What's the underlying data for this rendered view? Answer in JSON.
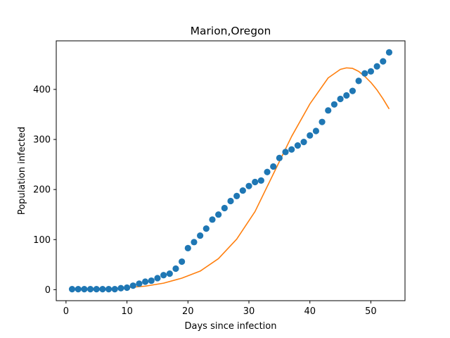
{
  "chart_data": {
    "type": "scatter",
    "title": "Marion,Oregon",
    "xlabel": "Days since infection",
    "ylabel": "Population infected",
    "xlim": [
      -1.6,
      55.6
    ],
    "ylim": [
      -22,
      497
    ],
    "xticks": [
      0,
      10,
      20,
      30,
      40,
      50
    ],
    "yticks": [
      0,
      100,
      200,
      300,
      400
    ],
    "grid": false,
    "legend": "none",
    "colors": {
      "observed": "#1f77b4",
      "model": "#ff7f0e"
    },
    "series": [
      {
        "kind": "scatter",
        "x": [
          1,
          2,
          3,
          4,
          5,
          6,
          7,
          8,
          9,
          10,
          11,
          12,
          13,
          14,
          15,
          16,
          17,
          18,
          19,
          20,
          21,
          22,
          23,
          24,
          25,
          26,
          27,
          28,
          29,
          30,
          31,
          32,
          33,
          34,
          35,
          36,
          37,
          38,
          39,
          40,
          41,
          42,
          43,
          44,
          45,
          46,
          47,
          48,
          49,
          50,
          51,
          52,
          53
        ],
        "y": [
          1,
          1,
          1,
          1,
          1,
          1,
          1,
          1,
          3,
          4,
          8,
          12,
          16,
          18,
          23,
          29,
          32,
          42,
          56,
          83,
          95,
          108,
          122,
          140,
          150,
          163,
          177,
          187,
          198,
          207,
          215,
          218,
          235,
          246,
          263,
          275,
          280,
          288,
          295,
          308,
          317,
          335,
          358,
          370,
          381,
          388,
          397,
          417,
          432,
          436,
          446,
          456,
          474
        ]
      },
      {
        "kind": "line",
        "x": [
          1,
          4,
          7,
          10,
          13,
          16,
          19,
          22,
          25,
          28,
          31,
          34,
          37,
          40,
          43,
          45,
          46,
          47,
          48,
          49,
          50,
          51,
          52,
          53
        ],
        "y": [
          1,
          1,
          2,
          4,
          7,
          13,
          23,
          37,
          62,
          101,
          156,
          231,
          306,
          371,
          423,
          440,
          443,
          442,
          436,
          426,
          414,
          399,
          381,
          361
        ]
      }
    ]
  }
}
